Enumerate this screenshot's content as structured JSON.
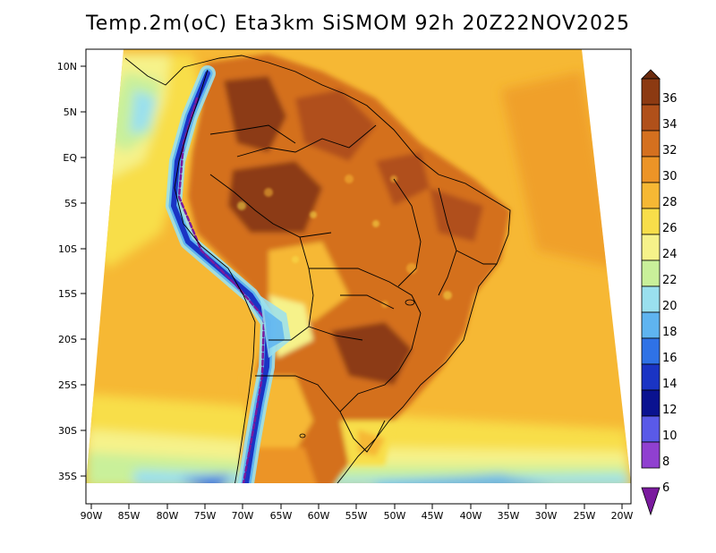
{
  "title": "Temp.2m(oC) Eta3km SiSMOM 92h 20Z22NOV2025",
  "latitude_labels": [
    "10N",
    "5N",
    "EQ",
    "5S",
    "10S",
    "15S",
    "20S",
    "25S",
    "30S",
    "35S"
  ],
  "longitude_labels": [
    "90W",
    "85W",
    "80W",
    "75W",
    "70W",
    "65W",
    "60W",
    "55W",
    "50W",
    "45W",
    "40W",
    "35W",
    "30W",
    "25W",
    "20W"
  ],
  "colorbar": {
    "unit": "oC",
    "levels": [
      "36",
      "34",
      "32",
      "30",
      "28",
      "26",
      "24",
      "22",
      "20",
      "18",
      "16",
      "14",
      "12",
      "10",
      "8",
      "6"
    ],
    "colors": [
      "#6b2b0e",
      "#8c3a12",
      "#b0501a",
      "#d4701f",
      "#ec9427",
      "#f6b834",
      "#f8de4a",
      "#f6f28a",
      "#c9f09a",
      "#9ae0ee",
      "#5fb4f0",
      "#2f72e6",
      "#1a34c4",
      "#0a1290",
      "#5a5ae8",
      "#9040d0",
      "#7a1a9e"
    ]
  }
}
